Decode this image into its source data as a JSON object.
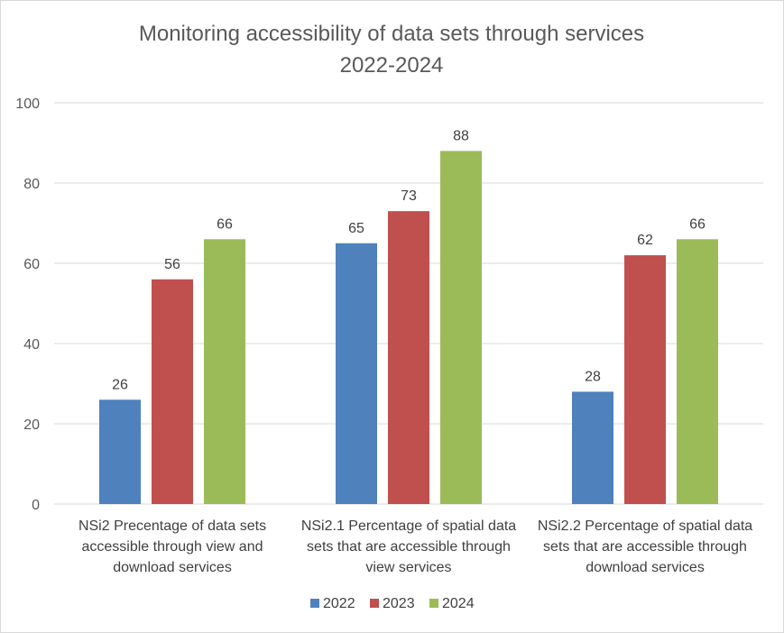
{
  "chart_data": {
    "type": "bar",
    "title": [
      "Monitoring accessibility of data sets through services",
      "2022-2024"
    ],
    "xlabel": "",
    "ylabel": "",
    "ylim": [
      0,
      100
    ],
    "yticks": [
      0,
      20,
      40,
      60,
      80,
      100
    ],
    "grid": true,
    "legend": "bottom",
    "categories": [
      [
        "NSi2 Precentage of data sets",
        "accessible through view and",
        "download services"
      ],
      [
        "NSi2.1 Percentage of spatial data",
        "sets that are accessible through",
        "view services"
      ],
      [
        "NSi2.2 Percentage of spatial data",
        "sets that are accessible through",
        "download services"
      ]
    ],
    "series": [
      {
        "name": "2022",
        "color": "#4f81bd",
        "values": [
          26,
          65,
          28
        ]
      },
      {
        "name": "2023",
        "color": "#c0504d",
        "values": [
          56,
          73,
          62
        ]
      },
      {
        "name": "2024",
        "color": "#9bbb59",
        "values": [
          66,
          88,
          66
        ]
      }
    ]
  }
}
